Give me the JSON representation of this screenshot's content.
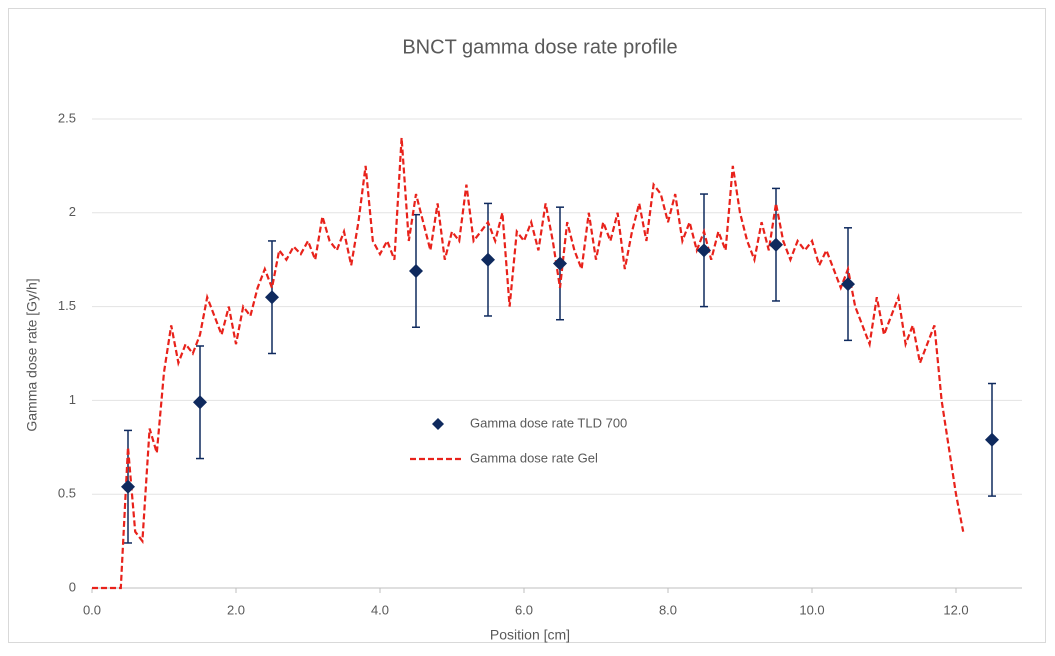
{
  "chart_data": {
    "type": "scatter-line",
    "title": "BNCT gamma dose rate profile",
    "x_label": "Position [cm]",
    "y_label": "Gamma dose rate [Gy/h]",
    "xlim": [
      0,
      13
    ],
    "ylim": [
      0,
      2.5
    ],
    "xticks": [
      {
        "value": 0,
        "label": "0.0"
      },
      {
        "value": 2,
        "label": "2.0"
      },
      {
        "value": 4,
        "label": "4.0"
      },
      {
        "value": 6,
        "label": "6.0"
      },
      {
        "value": 8,
        "label": "8.0"
      },
      {
        "value": 10,
        "label": "10.0"
      },
      {
        "value": 12,
        "label": "12.0"
      }
    ],
    "yticks": [
      0,
      0.5,
      1,
      1.5,
      2,
      2.5
    ],
    "grid": true,
    "series": [
      {
        "name": "Gamma dose rate TLD 700",
        "color": "#0f2a5e",
        "style": "marker",
        "x": [
          0.5,
          1.5,
          2.5,
          4.5,
          5.5,
          6.5,
          8.5,
          9.5,
          10.5,
          12.5
        ],
        "values": [
          0.54,
          0.99,
          1.55,
          1.69,
          1.75,
          1.73,
          1.8,
          1.83,
          1.62,
          0.79
        ],
        "errors": [
          0.3,
          0.3,
          0.3,
          0.3,
          0.3,
          0.3,
          0.3,
          0.3,
          0.3,
          0.3
        ]
      },
      {
        "name": "Gamma dose rate Gel",
        "color": "#e8221b",
        "style": "dashed-line",
        "x": [
          0,
          0.1,
          0.2,
          0.3,
          0.4,
          0.5,
          0.6,
          0.7,
          0.8,
          0.9,
          1,
          1.1,
          1.2,
          1.3,
          1.4,
          1.5,
          1.6,
          1.7,
          1.8,
          1.9,
          2,
          2.1,
          2.2,
          2.3,
          2.4,
          2.5,
          2.6,
          2.7,
          2.8,
          2.9,
          3,
          3.1,
          3.2,
          3.3,
          3.4,
          3.5,
          3.6,
          3.7,
          3.8,
          3.9,
          4,
          4.1,
          4.2,
          4.3,
          4.4,
          4.5,
          4.6,
          4.7,
          4.8,
          4.9,
          5,
          5.1,
          5.2,
          5.3,
          5.4,
          5.5,
          5.6,
          5.7,
          5.8,
          5.9,
          6,
          6.1,
          6.2,
          6.3,
          6.4,
          6.5,
          6.6,
          6.7,
          6.8,
          6.9,
          7,
          7.1,
          7.2,
          7.3,
          7.4,
          7.5,
          7.6,
          7.7,
          7.8,
          7.9,
          8,
          8.1,
          8.2,
          8.3,
          8.4,
          8.5,
          8.6,
          8.7,
          8.8,
          8.9,
          9,
          9.1,
          9.2,
          9.3,
          9.4,
          9.5,
          9.6,
          9.7,
          9.8,
          9.9,
          10,
          10.1,
          10.2,
          10.3,
          10.4,
          10.5,
          10.6,
          10.7,
          10.8,
          10.9,
          11,
          11.1,
          11.2,
          11.3,
          11.4,
          11.5,
          11.6,
          11.7,
          11.8,
          11.9,
          12,
          12.1
        ],
        "values": [
          0,
          0,
          0,
          0,
          0,
          0.75,
          0.3,
          0.25,
          0.85,
          0.72,
          1.15,
          1.4,
          1.2,
          1.3,
          1.25,
          1.35,
          1.55,
          1.45,
          1.35,
          1.5,
          1.3,
          1.5,
          1.45,
          1.6,
          1.7,
          1.6,
          1.8,
          1.75,
          1.82,
          1.78,
          1.85,
          1.75,
          1.98,
          1.85,
          1.8,
          1.9,
          1.72,
          1.95,
          2.25,
          1.85,
          1.78,
          1.85,
          1.75,
          2.4,
          1.85,
          2.1,
          1.95,
          1.8,
          2.05,
          1.75,
          1.9,
          1.85,
          2.15,
          1.85,
          1.9,
          1.95,
          1.85,
          2.0,
          1.5,
          1.9,
          1.85,
          1.95,
          1.8,
          2.05,
          1.85,
          1.6,
          1.95,
          1.8,
          1.7,
          2.0,
          1.75,
          1.95,
          1.85,
          2.0,
          1.7,
          1.9,
          2.05,
          1.85,
          2.15,
          2.1,
          1.95,
          2.1,
          1.85,
          1.95,
          1.8,
          1.9,
          1.75,
          1.9,
          1.8,
          2.25,
          2.0,
          1.85,
          1.75,
          1.95,
          1.8,
          2.05,
          1.85,
          1.75,
          1.85,
          1.8,
          1.85,
          1.72,
          1.8,
          1.7,
          1.6,
          1.7,
          1.5,
          1.4,
          1.3,
          1.55,
          1.35,
          1.45,
          1.55,
          1.3,
          1.4,
          1.2,
          1.3,
          1.4,
          1.0,
          0.75,
          0.5,
          0.3
        ]
      }
    ]
  }
}
